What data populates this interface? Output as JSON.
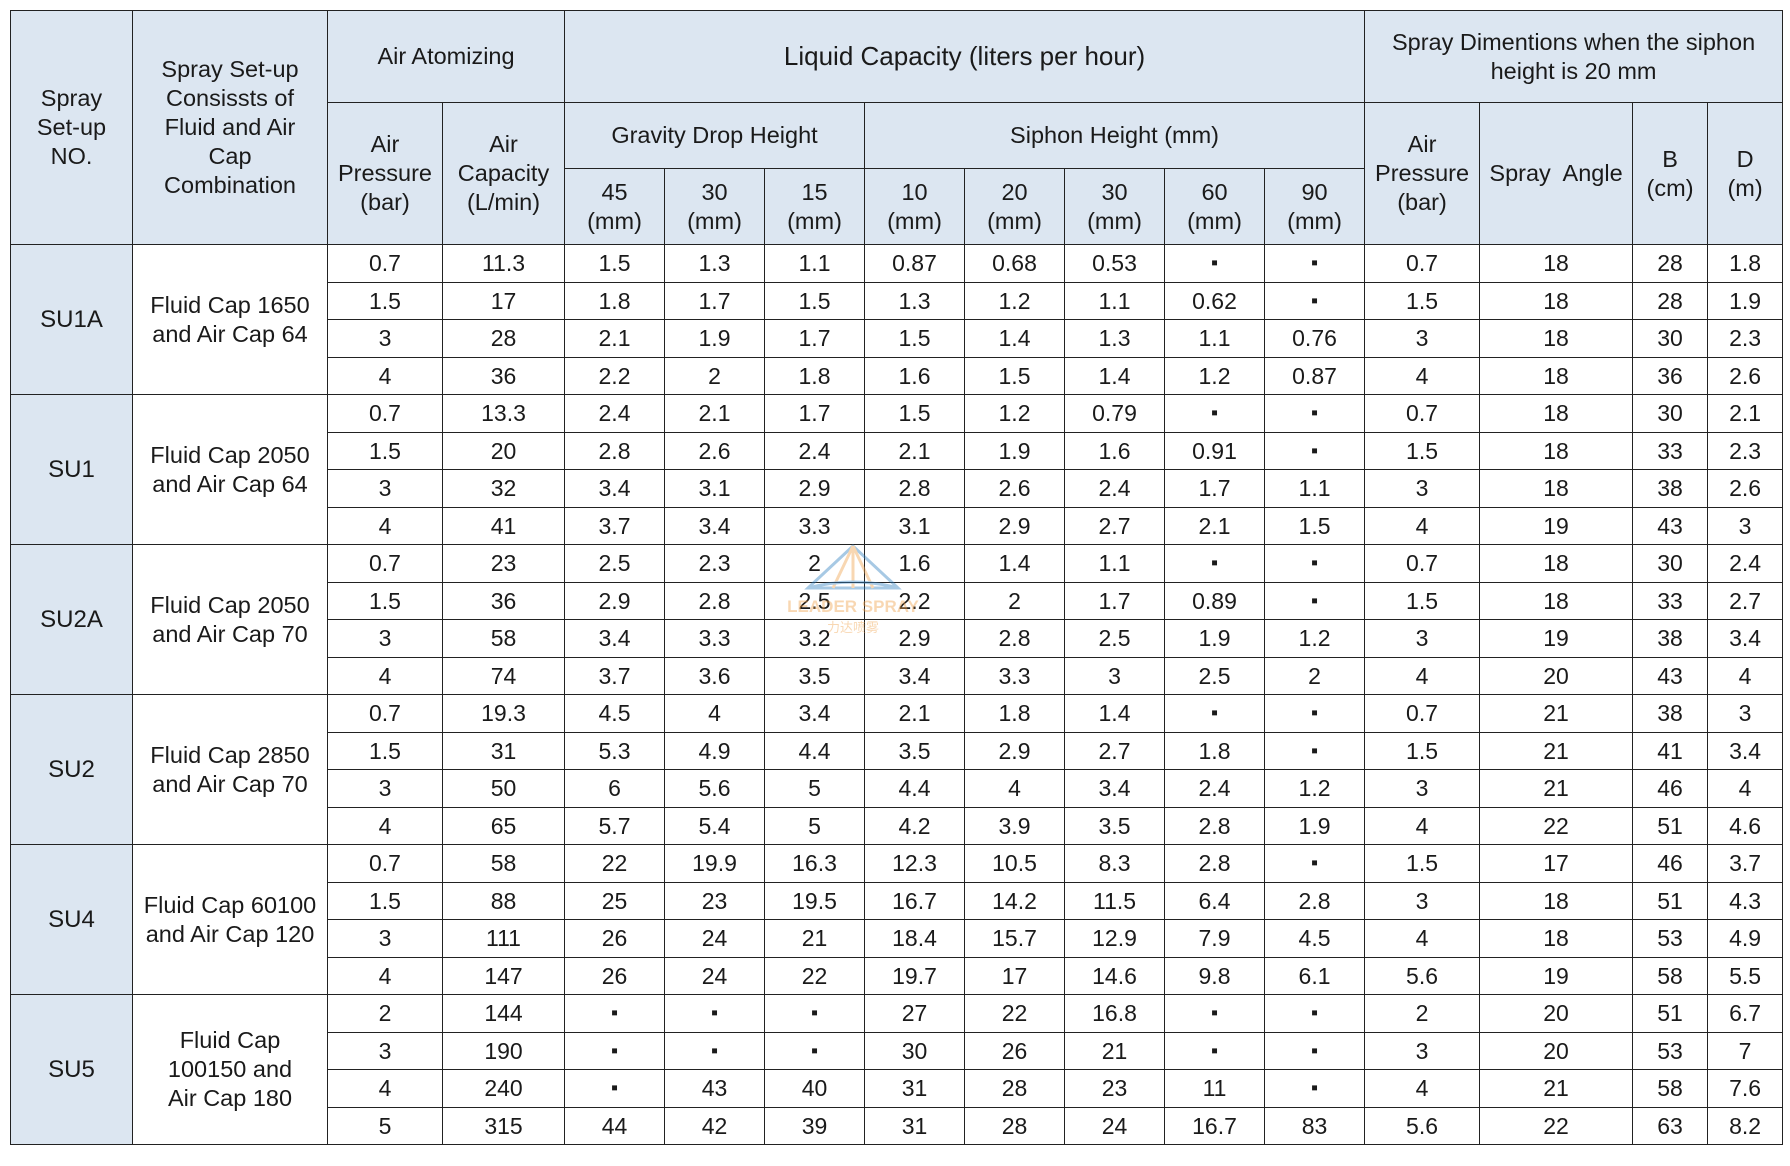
{
  "headers": {
    "setup_no": "Spray\nSet-up\nNO.",
    "combination": "Spray Set-up\nConsissts of\nFluid and Air\nCap\nCombination",
    "air_atomizing": "Air Atomizing",
    "liquid_capacity": "Liquid Capacity (liters per hour)",
    "spray_dimensions": "Spray Dimentions when the siphon\nheight is 20 mm",
    "air_pressure": "Air\nPressure\n(bar)",
    "air_capacity": "Air\nCapacity\n(L/min)",
    "gravity_drop_height": "Gravity Drop Height",
    "siphon_height": "Siphon Height (mm)",
    "gravity_cols": [
      "45\n(mm)",
      "30\n(mm)",
      "15\n(mm)"
    ],
    "siphon_cols": [
      "10\n(mm)",
      "20\n(mm)",
      "30\n(mm)",
      "60\n(mm)",
      "90\n(mm)"
    ],
    "dim_air_pressure": "Air\nPressure\n(bar)",
    "spray_angle": "Spray  Angle",
    "b_col": "B\n(cm)",
    "d_col": "D\n(m)"
  },
  "groups": [
    {
      "setup": "SU1A",
      "combination": "Fluid Cap 1650\nand Air Cap 64",
      "rows": [
        [
          "0.7",
          "11.3",
          "1.5",
          "1.3",
          "1.1",
          "0.87",
          "0.68",
          "0.53",
          "▪",
          "▪",
          "0.7",
          "18",
          "28",
          "1.8"
        ],
        [
          "1.5",
          "17",
          "1.8",
          "1.7",
          "1.5",
          "1.3",
          "1.2",
          "1.1",
          "0.62",
          "▪",
          "1.5",
          "18",
          "28",
          "1.9"
        ],
        [
          "3",
          "28",
          "2.1",
          "1.9",
          "1.7",
          "1.5",
          "1.4",
          "1.3",
          "1.1",
          "0.76",
          "3",
          "18",
          "30",
          "2.3"
        ],
        [
          "4",
          "36",
          "2.2",
          "2",
          "1.8",
          "1.6",
          "1.5",
          "1.4",
          "1.2",
          "0.87",
          "4",
          "18",
          "36",
          "2.6"
        ]
      ]
    },
    {
      "setup": "SU1",
      "combination": "Fluid Cap 2050\nand Air Cap 64",
      "rows": [
        [
          "0.7",
          "13.3",
          "2.4",
          "2.1",
          "1.7",
          "1.5",
          "1.2",
          "0.79",
          "▪",
          "▪",
          "0.7",
          "18",
          "30",
          "2.1"
        ],
        [
          "1.5",
          "20",
          "2.8",
          "2.6",
          "2.4",
          "2.1",
          "1.9",
          "1.6",
          "0.91",
          "▪",
          "1.5",
          "18",
          "33",
          "2.3"
        ],
        [
          "3",
          "32",
          "3.4",
          "3.1",
          "2.9",
          "2.8",
          "2.6",
          "2.4",
          "1.7",
          "1.1",
          "3",
          "18",
          "38",
          "2.6"
        ],
        [
          "4",
          "41",
          "3.7",
          "3.4",
          "3.3",
          "3.1",
          "2.9",
          "2.7",
          "2.1",
          "1.5",
          "4",
          "19",
          "43",
          "3"
        ]
      ]
    },
    {
      "setup": "SU2A",
      "combination": "Fluid Cap 2050\nand Air Cap 70",
      "rows": [
        [
          "0.7",
          "23",
          "2.5",
          "2.3",
          "2",
          "1.6",
          "1.4",
          "1.1",
          "▪",
          "▪",
          "0.7",
          "18",
          "30",
          "2.4"
        ],
        [
          "1.5",
          "36",
          "2.9",
          "2.8",
          "2.5",
          "2.2",
          "2",
          "1.7",
          "0.89",
          "▪",
          "1.5",
          "18",
          "33",
          "2.7"
        ],
        [
          "3",
          "58",
          "3.4",
          "3.3",
          "3.2",
          "2.9",
          "2.8",
          "2.5",
          "1.9",
          "1.2",
          "3",
          "19",
          "38",
          "3.4"
        ],
        [
          "4",
          "74",
          "3.7",
          "3.6",
          "3.5",
          "3.4",
          "3.3",
          "3",
          "2.5",
          "2",
          "4",
          "20",
          "43",
          "4"
        ]
      ]
    },
    {
      "setup": "SU2",
      "combination": "Fluid Cap 2850\nand Air Cap 70",
      "rows": [
        [
          "0.7",
          "19.3",
          "4.5",
          "4",
          "3.4",
          "2.1",
          "1.8",
          "1.4",
          "▪",
          "▪",
          "0.7",
          "21",
          "38",
          "3"
        ],
        [
          "1.5",
          "31",
          "5.3",
          "4.9",
          "4.4",
          "3.5",
          "2.9",
          "2.7",
          "1.8",
          "▪",
          "1.5",
          "21",
          "41",
          "3.4"
        ],
        [
          "3",
          "50",
          "6",
          "5.6",
          "5",
          "4.4",
          "4",
          "3.4",
          "2.4",
          "1.2",
          "3",
          "21",
          "46",
          "4"
        ],
        [
          "4",
          "65",
          "5.7",
          "5.4",
          "5",
          "4.2",
          "3.9",
          "3.5",
          "2.8",
          "1.9",
          "4",
          "22",
          "51",
          "4.6"
        ]
      ]
    },
    {
      "setup": "SU4",
      "combination": "Fluid Cap 60100\nand Air Cap 120",
      "rows": [
        [
          "0.7",
          "58",
          "22",
          "19.9",
          "16.3",
          "12.3",
          "10.5",
          "8.3",
          "2.8",
          "▪",
          "1.5",
          "17",
          "46",
          "3.7"
        ],
        [
          "1.5",
          "88",
          "25",
          "23",
          "19.5",
          "16.7",
          "14.2",
          "11.5",
          "6.4",
          "2.8",
          "3",
          "18",
          "51",
          "4.3"
        ],
        [
          "3",
          "111",
          "26",
          "24",
          "21",
          "18.4",
          "15.7",
          "12.9",
          "7.9",
          "4.5",
          "4",
          "18",
          "53",
          "4.9"
        ],
        [
          "4",
          "147",
          "26",
          "24",
          "22",
          "19.7",
          "17",
          "14.6",
          "9.8",
          "6.1",
          "5.6",
          "19",
          "58",
          "5.5"
        ]
      ]
    },
    {
      "setup": "SU5",
      "combination": "Fluid Cap\n100150      and\nAir Cap 180",
      "rows": [
        [
          "2",
          "144",
          "▪",
          "▪",
          "▪",
          "27",
          "22",
          "16.8",
          "▪",
          "▪",
          "2",
          "20",
          "51",
          "6.7"
        ],
        [
          "3",
          "190",
          "▪",
          "▪",
          "▪",
          "30",
          "26",
          "21",
          "▪",
          "▪",
          "3",
          "20",
          "53",
          "7"
        ],
        [
          "4",
          "240",
          "▪",
          "43",
          "40",
          "31",
          "28",
          "23",
          "11",
          "▪",
          "4",
          "21",
          "58",
          "7.6"
        ],
        [
          "5",
          "315",
          "44",
          "42",
          "39",
          "31",
          "28",
          "24",
          "16.7",
          "83",
          "5.6",
          "22",
          "63",
          "8.2"
        ]
      ]
    }
  ],
  "watermark": {
    "brand": "LEADER SPRAY",
    "brand_cn": "力达喷雾",
    "color_blue": "#2f7fc1",
    "color_orange": "#f0a14a"
  },
  "colors": {
    "header_bg": "#dce6f1",
    "border": "#222222"
  }
}
